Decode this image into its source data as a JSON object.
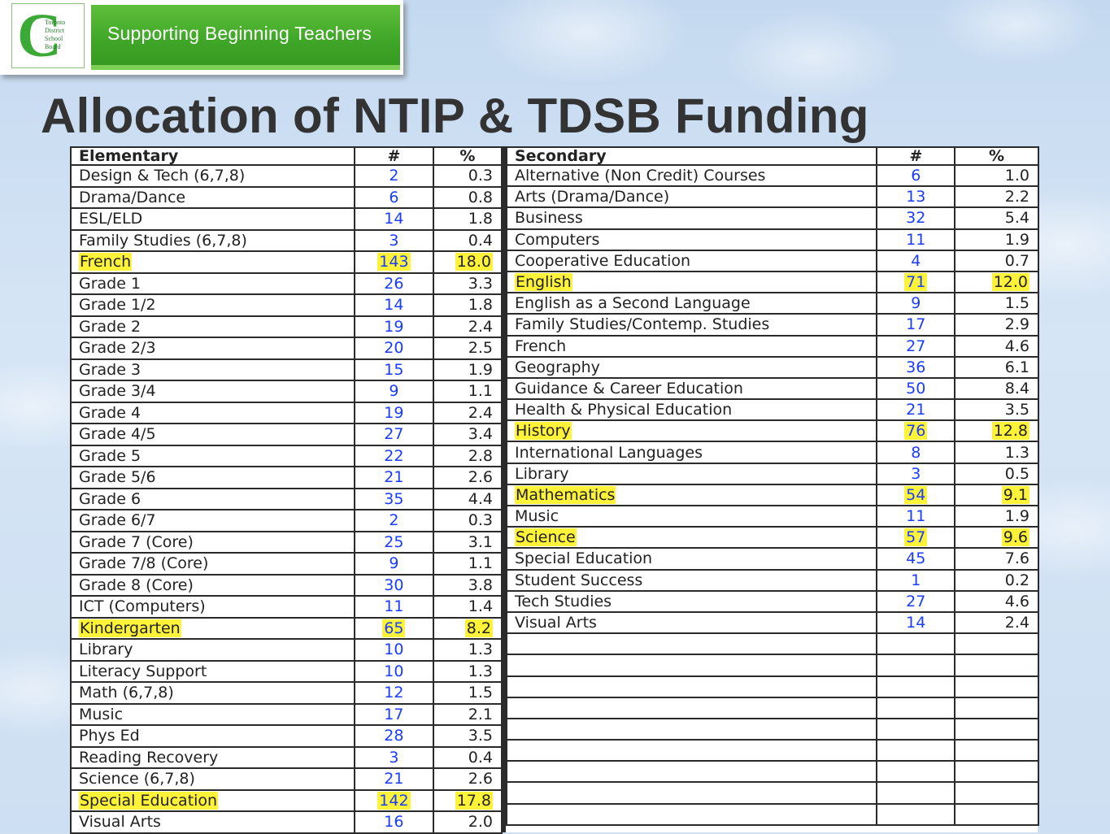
{
  "banner": {
    "logo_lines": [
      "Toronto",
      "District",
      "School",
      "Board"
    ],
    "title": "Supporting Beginning Teachers"
  },
  "slide": {
    "title": "Allocation of NTIP & TDSB Funding"
  },
  "elementary": {
    "headers": [
      "Elementary",
      "#",
      "%"
    ],
    "rows": [
      {
        "subject": "Design & Tech (6,7,8)",
        "count": "2",
        "pct": "0.3",
        "highlight": false
      },
      {
        "subject": "Drama/Dance",
        "count": "6",
        "pct": "0.8",
        "highlight": false
      },
      {
        "subject": "ESL/ELD",
        "count": "14",
        "pct": "1.8",
        "highlight": false
      },
      {
        "subject": "Family Studies (6,7,8)",
        "count": "3",
        "pct": "0.4",
        "highlight": false
      },
      {
        "subject": "French",
        "count": "143",
        "pct": "18.0",
        "highlight": true
      },
      {
        "subject": "Grade 1",
        "count": "26",
        "pct": "3.3",
        "highlight": false
      },
      {
        "subject": "Grade 1/2",
        "count": "14",
        "pct": "1.8",
        "highlight": false
      },
      {
        "subject": "Grade 2",
        "count": "19",
        "pct": "2.4",
        "highlight": false
      },
      {
        "subject": "Grade 2/3",
        "count": "20",
        "pct": "2.5",
        "highlight": false
      },
      {
        "subject": "Grade 3",
        "count": "15",
        "pct": "1.9",
        "highlight": false
      },
      {
        "subject": "Grade 3/4",
        "count": "9",
        "pct": "1.1",
        "highlight": false
      },
      {
        "subject": "Grade 4",
        "count": "19",
        "pct": "2.4",
        "highlight": false
      },
      {
        "subject": "Grade 4/5",
        "count": "27",
        "pct": "3.4",
        "highlight": false
      },
      {
        "subject": "Grade 5",
        "count": "22",
        "pct": "2.8",
        "highlight": false
      },
      {
        "subject": "Grade 5/6",
        "count": "21",
        "pct": "2.6",
        "highlight": false
      },
      {
        "subject": "Grade 6",
        "count": "35",
        "pct": "4.4",
        "highlight": false
      },
      {
        "subject": "Grade 6/7",
        "count": "2",
        "pct": "0.3",
        "highlight": false
      },
      {
        "subject": "Grade 7 (Core)",
        "count": "25",
        "pct": "3.1",
        "highlight": false
      },
      {
        "subject": "Grade 7/8 (Core)",
        "count": "9",
        "pct": "1.1",
        "highlight": false
      },
      {
        "subject": "Grade 8 (Core)",
        "count": "30",
        "pct": "3.8",
        "highlight": false
      },
      {
        "subject": "ICT (Computers)",
        "count": "11",
        "pct": "1.4",
        "highlight": false
      },
      {
        "subject": "Kindergarten",
        "count": "65",
        "pct": "8.2",
        "highlight": true
      },
      {
        "subject": "Library",
        "count": "10",
        "pct": "1.3",
        "highlight": false
      },
      {
        "subject": "Literacy Support",
        "count": "10",
        "pct": "1.3",
        "highlight": false
      },
      {
        "subject": "Math (6,7,8)",
        "count": "12",
        "pct": "1.5",
        "highlight": false
      },
      {
        "subject": "Music",
        "count": "17",
        "pct": "2.1",
        "highlight": false
      },
      {
        "subject": "Phys Ed",
        "count": "28",
        "pct": "3.5",
        "highlight": false
      },
      {
        "subject": "Reading Recovery",
        "count": "3",
        "pct": "0.4",
        "highlight": false
      },
      {
        "subject": "Science (6,7,8)",
        "count": "21",
        "pct": "2.6",
        "highlight": false
      },
      {
        "subject": "Special Education",
        "count": "142",
        "pct": "17.8",
        "highlight": true
      },
      {
        "subject": "Visual Arts",
        "count": "16",
        "pct": "2.0",
        "highlight": false
      }
    ]
  },
  "secondary": {
    "headers": [
      "Secondary",
      "#",
      "%"
    ],
    "rows": [
      {
        "subject": "Alternative (Non Credit) Courses",
        "count": "6",
        "pct": "1.0",
        "highlight": false
      },
      {
        "subject": "Arts (Drama/Dance)",
        "count": "13",
        "pct": "2.2",
        "highlight": false
      },
      {
        "subject": "Business",
        "count": "32",
        "pct": "5.4",
        "highlight": false
      },
      {
        "subject": "Computers",
        "count": "11",
        "pct": "1.9",
        "highlight": false
      },
      {
        "subject": "Cooperative Education",
        "count": "4",
        "pct": "0.7",
        "highlight": false
      },
      {
        "subject": "English",
        "count": "71",
        "pct": "12.0",
        "highlight": true
      },
      {
        "subject": "English as a Second Language",
        "count": "9",
        "pct": "1.5",
        "highlight": false
      },
      {
        "subject": "Family Studies/Contemp. Studies",
        "count": "17",
        "pct": "2.9",
        "highlight": false
      },
      {
        "subject": "French",
        "count": "27",
        "pct": "4.6",
        "highlight": false
      },
      {
        "subject": "Geography",
        "count": "36",
        "pct": "6.1",
        "highlight": false
      },
      {
        "subject": "Guidance & Career Education",
        "count": "50",
        "pct": "8.4",
        "highlight": false
      },
      {
        "subject": "Health & Physical Education",
        "count": "21",
        "pct": "3.5",
        "highlight": false
      },
      {
        "subject": "History",
        "count": "76",
        "pct": "12.8",
        "highlight": true
      },
      {
        "subject": "International Languages",
        "count": "8",
        "pct": "1.3",
        "highlight": false
      },
      {
        "subject": "Library",
        "count": "3",
        "pct": "0.5",
        "highlight": false
      },
      {
        "subject": "Mathematics",
        "count": "54",
        "pct": "9.1",
        "highlight": true
      },
      {
        "subject": "Music",
        "count": "11",
        "pct": "1.9",
        "highlight": false
      },
      {
        "subject": "Science",
        "count": "57",
        "pct": "9.6",
        "highlight": true
      },
      {
        "subject": "Special Education",
        "count": "45",
        "pct": "7.6",
        "highlight": false
      },
      {
        "subject": "Student Success",
        "count": "1",
        "pct": "0.2",
        "highlight": false
      },
      {
        "subject": "Tech Studies",
        "count": "27",
        "pct": "4.6",
        "highlight": false
      },
      {
        "subject": "Visual Arts",
        "count": "14",
        "pct": "2.4",
        "highlight": false
      }
    ]
  }
}
